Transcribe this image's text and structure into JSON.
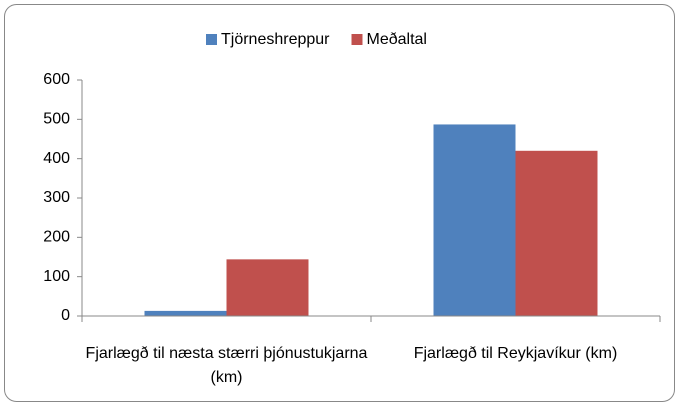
{
  "chart_data": {
    "type": "bar",
    "categories": [
      "Fjarlægð til næsta stærri þjónustukjarna (km)",
      "Fjarlægð til Reykjavíkur (km)"
    ],
    "series": [
      {
        "name": "Tjörneshreppur",
        "color": "#4f81bd",
        "values": [
          13,
          487
        ]
      },
      {
        "name": "Meðaltal",
        "color": "#c0504d",
        "values": [
          144,
          420
        ]
      }
    ],
    "ylim": [
      0,
      600
    ],
    "yticks": [
      0,
      100,
      200,
      300,
      400,
      500,
      600
    ],
    "grid": false,
    "legend": "top"
  }
}
